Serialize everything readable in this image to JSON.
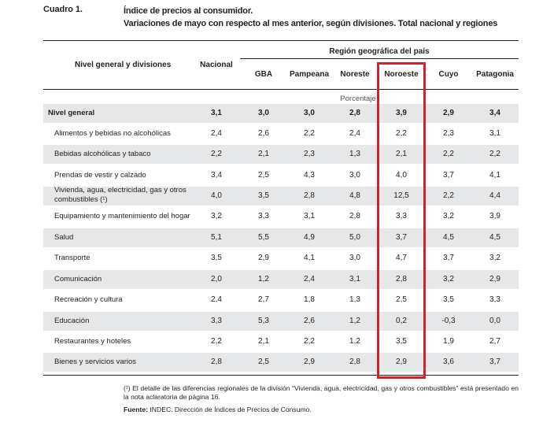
{
  "header": {
    "label": "Cuadro 1.",
    "title_line1": "Índice de precios al consumidor.",
    "title_line2": "Variaciones de mayo con respecto al mes anterior, según divisiones. Total nacional y regiones"
  },
  "table": {
    "col_division": "Nivel general y divisiones",
    "col_national": "Nacional",
    "group_header": "Región geográfica del país",
    "regions": [
      "GBA",
      "Pampeana",
      "Noreste",
      "Noroeste",
      "Cuyo",
      "Patagonia"
    ],
    "unit": "Porcentaje",
    "highlighted_region": "Noroeste",
    "highlight_color": "#d4202a",
    "shade_color": "#e6e7e8",
    "rows": [
      {
        "name": "Nivel general",
        "values": [
          "3,1",
          "3,0",
          "3,0",
          "2,8",
          "3,9",
          "2,9",
          "3,4"
        ]
      },
      {
        "name": "Alimentos y bebidas no alcohólicas",
        "values": [
          "2,4",
          "2,6",
          "2,2",
          "2,4",
          "2,2",
          "2,3",
          "3,1"
        ]
      },
      {
        "name": "Bebidas alcohólicas y tabaco",
        "values": [
          "2,2",
          "2,1",
          "2,3",
          "1,3",
          "2,1",
          "2,2",
          "2,2"
        ]
      },
      {
        "name": "Prendas de vestir y calzado",
        "values": [
          "3,4",
          "2,5",
          "4,3",
          "3,0",
          "4,0",
          "3,7",
          "4,1"
        ]
      },
      {
        "name_line1": "Vivienda, agua, electricidad, gas y otros",
        "name_line2": "combustibles (¹)",
        "values": [
          "4,0",
          "3,5",
          "2,8",
          "4,8",
          "12,5",
          "2,2",
          "4,4"
        ]
      },
      {
        "name": "Equipamiento y mantenimiento del hogar",
        "values": [
          "3,2",
          "3,3",
          "3,1",
          "2,8",
          "3,3",
          "3,2",
          "3,9"
        ]
      },
      {
        "name": "Salud",
        "values": [
          "5,1",
          "5,5",
          "4,9",
          "5,0",
          "3,7",
          "4,5",
          "4,5"
        ]
      },
      {
        "name": "Transporte",
        "values": [
          "3,5",
          "2,9",
          "4,1",
          "3,0",
          "4,7",
          "3,7",
          "3,2"
        ]
      },
      {
        "name": "Comunicación",
        "values": [
          "2,0",
          "1,2",
          "2,4",
          "3,1",
          "2,8",
          "3,2",
          "2,9"
        ]
      },
      {
        "name": "Recreación y cultura",
        "values": [
          "2,4",
          "2,7",
          "1,8",
          "1,3",
          "2,5",
          "3,5",
          "3,3"
        ]
      },
      {
        "name": "Educación",
        "values": [
          "3,3",
          "5,3",
          "2,6",
          "1,2",
          "0,2",
          "-0,3",
          "0,0"
        ]
      },
      {
        "name": "Restaurantes y hoteles",
        "values": [
          "2,2",
          "2,1",
          "2,2",
          "1,2",
          "3,5",
          "1,9",
          "2,7"
        ]
      },
      {
        "name": "Bienes y servicios varios",
        "values": [
          "2,8",
          "2,5",
          "2,9",
          "2,8",
          "2,9",
          "3,6",
          "3,7"
        ]
      }
    ]
  },
  "footnote": {
    "note": "(¹) El detalle de las diferencias regionales de la división “Vivienda, agua, electricidad, gas y otros combustibles” está presentado en la nota aclaratoria de página 16.",
    "source_label": "Fuente:",
    "source_text": " INDEC. Dirección de Índices de Precios de Consumo."
  }
}
